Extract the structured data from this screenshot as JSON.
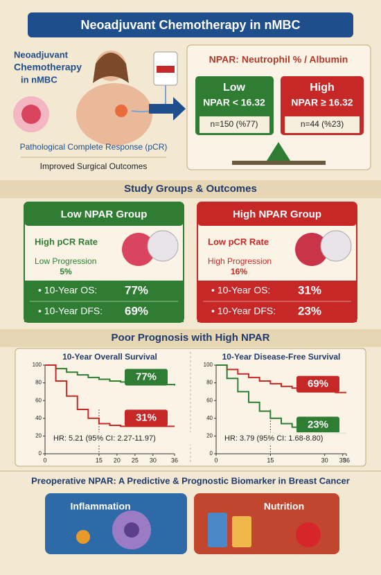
{
  "header": {
    "title": "Neoadjuvant Chemotherapy in nMBC"
  },
  "intro": {
    "lines": [
      "Neoadjuvant",
      "Chemotherapy",
      "in nMBC"
    ],
    "pcr": "Pathological Complete Response (pCR)",
    "outcome": "Improved Surgical Outcomes"
  },
  "npar": {
    "title": "NPAR: Neutrophil % / Albumin",
    "groups": [
      {
        "name": "Low",
        "rule": "NPAR < 16.32",
        "count": "n=150 (%77)"
      },
      {
        "name": "High",
        "rule": "NPAR ≥ 16.32",
        "count": "n=44 (%23)"
      }
    ]
  },
  "section1": "Study Groups & Outcomes",
  "cards": [
    {
      "title": "Low NPAR Group",
      "pcr": "High pCR Rate",
      "progression": "Low Progression",
      "progression_value": "5%",
      "os": "• 10-Year OS:",
      "os_value": "77%",
      "dfs": "• 10-Year DFS:",
      "dfs_value": "69%"
    },
    {
      "title": "High NPAR Group",
      "pcr": "Low pCR Rate",
      "progression": "High Progression",
      "progression_value": "16%",
      "os": "• 10-Year OS:",
      "os_value": "31%",
      "dfs": "• 10-Year DFS:",
      "dfs_value": "23%"
    }
  ],
  "section2": "Poor Prognosis with High NPAR",
  "charts": [
    {
      "type": "line",
      "title": "10-Year Overall Survival",
      "x": [
        0,
        3,
        6,
        9,
        12,
        15,
        18,
        21,
        24,
        27,
        30,
        33,
        36
      ],
      "xlim": [
        0,
        36
      ],
      "xticks": [
        0,
        15,
        20,
        25,
        30,
        36
      ],
      "ylim": [
        0,
        100
      ],
      "yticks": [
        0,
        20,
        40,
        60,
        80,
        100
      ],
      "series": [
        {
          "color": "#2e7d32",
          "values": [
            100,
            96,
            92,
            89,
            86,
            84,
            82,
            81,
            80,
            79,
            78,
            78,
            77
          ],
          "value_label": "77%"
        },
        {
          "color": "#c62828",
          "values": [
            100,
            82,
            65,
            50,
            40,
            34,
            32,
            31,
            31,
            31,
            31,
            31,
            31
          ],
          "value_label": "31%"
        }
      ],
      "annotation": "HR: 5.21 (95% CI: 2.27-11.97)"
    },
    {
      "type": "line",
      "title": "10-Year Disease-Free Survival",
      "x": [
        0,
        3,
        6,
        9,
        12,
        15,
        18,
        21,
        24,
        27,
        30,
        33,
        36
      ],
      "xlim": [
        0,
        36
      ],
      "xticks": [
        0,
        15,
        30,
        35,
        36
      ],
      "ylim": [
        0,
        100
      ],
      "yticks": [
        0,
        20,
        40,
        60,
        80,
        100
      ],
      "series": [
        {
          "color": "#c62828",
          "values": [
            100,
            95,
            90,
            86,
            82,
            79,
            76,
            74,
            72,
            71,
            70,
            69,
            69
          ],
          "value_label": "69%"
        },
        {
          "color": "#2e7d32",
          "values": [
            100,
            85,
            70,
            58,
            48,
            40,
            34,
            30,
            27,
            25,
            24,
            23,
            23
          ],
          "value_label": "23%"
        }
      ],
      "annotation": "HR: 3.79 (95% CI: 1.68-8.80)"
    }
  ],
  "footer": "Preoperative NPAR: A Predictive & Prognostic Biomarker in Breast Cancer",
  "tags": [
    "Inflammation",
    "Nutrition"
  ]
}
